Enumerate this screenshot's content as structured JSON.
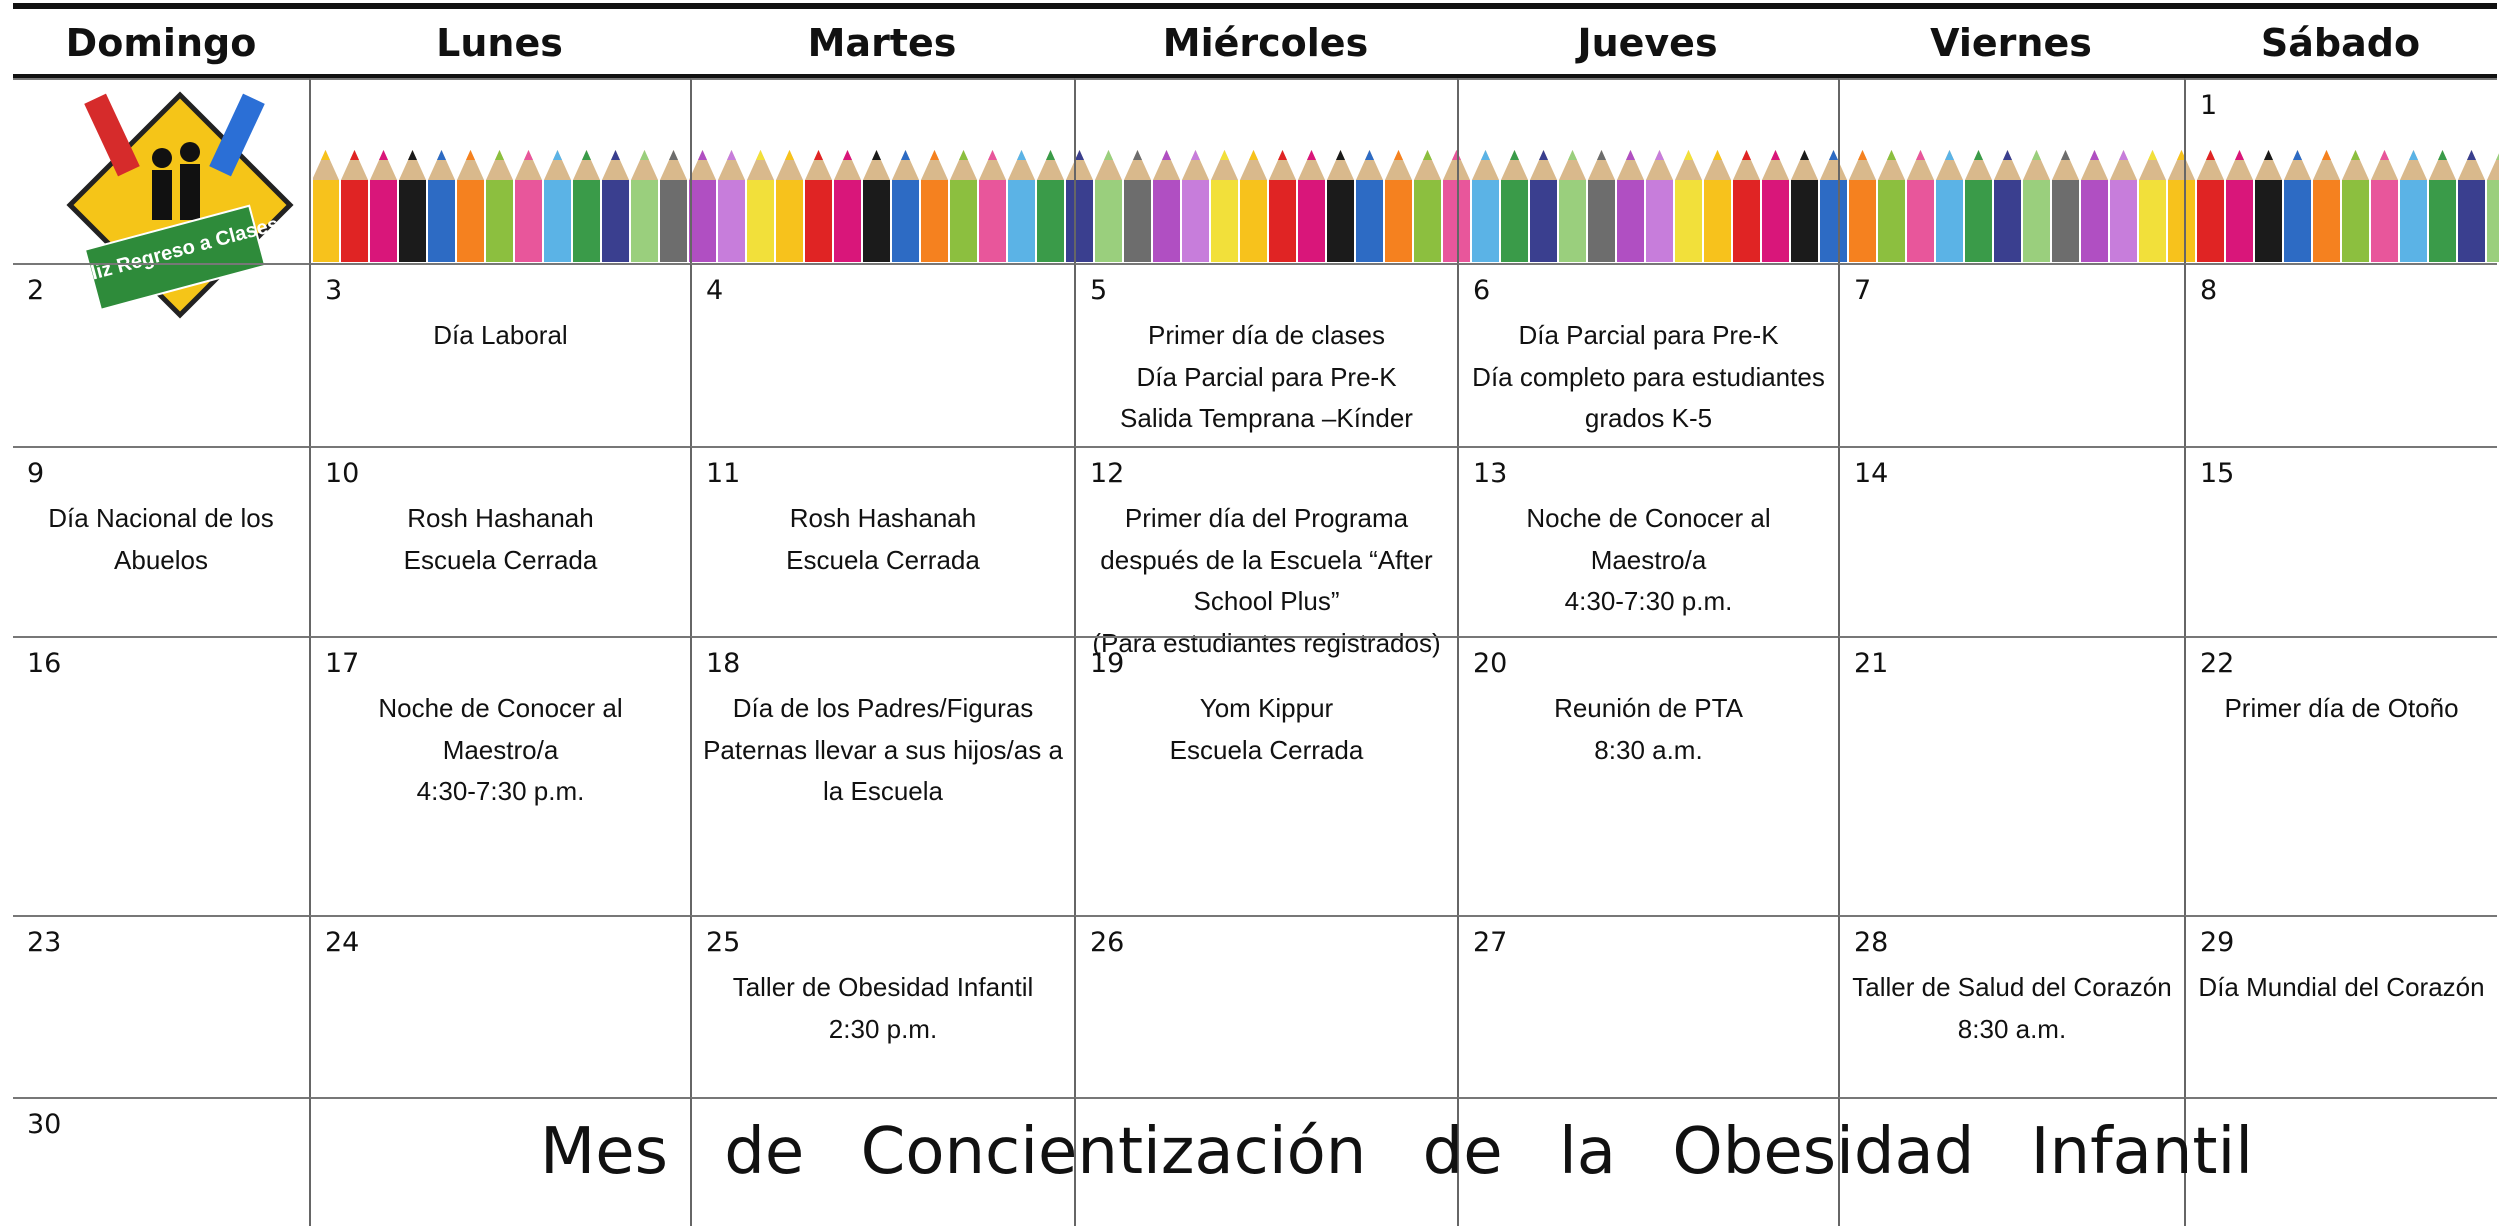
{
  "header": {
    "days": [
      "Domingo",
      "Lunes",
      "Martes",
      "Miércoles",
      "Jueves",
      "Viernes",
      "Sábado"
    ]
  },
  "logo_text": "Feliz Regreso a Clases",
  "weeks": [
    [
      null,
      null,
      null,
      null,
      null,
      null,
      {
        "day": 1
      }
    ],
    [
      {
        "day": 2
      },
      {
        "day": 3,
        "events": [
          "Día Laboral"
        ]
      },
      {
        "day": 4
      },
      {
        "day": 5,
        "events": [
          "Primer día de clases",
          "Día Parcial para Pre-K",
          "Salida Temprana –Kínder"
        ]
      },
      {
        "day": 6,
        "events": [
          "Día Parcial para Pre-K",
          "Día completo para estudiantes grados K-5"
        ]
      },
      {
        "day": 7
      },
      {
        "day": 8
      }
    ],
    [
      {
        "day": 9,
        "events": [
          "Día Nacional de los Abuelos"
        ]
      },
      {
        "day": 10,
        "events": [
          "Rosh Hashanah",
          "Escuela Cerrada"
        ]
      },
      {
        "day": 11,
        "events": [
          "Rosh Hashanah",
          "Escuela Cerrada"
        ]
      },
      {
        "day": 12,
        "events": [
          "Primer día del Programa después de la Escuela “After School Plus”",
          "(Para estudiantes registrados)"
        ]
      },
      {
        "day": 13,
        "events": [
          "Noche de Conocer al Maestro/a",
          "4:30-7:30 p.m."
        ]
      },
      {
        "day": 14
      },
      {
        "day": 15
      }
    ],
    [
      {
        "day": 16
      },
      {
        "day": 17,
        "events": [
          "Noche de Conocer al Maestro/a",
          "4:30-7:30 p.m."
        ]
      },
      {
        "day": 18,
        "events": [
          "Día de los Padres/Figuras Paternas llevar a sus hijos/as a la Escuela"
        ]
      },
      {
        "day": 19,
        "events": [
          "Yom Kippur",
          "Escuela Cerrada"
        ]
      },
      {
        "day": 20,
        "events": [
          "Reunión de PTA",
          "8:30 a.m."
        ]
      },
      {
        "day": 21
      },
      {
        "day": 22,
        "events": [
          "Primer día de Otoño"
        ]
      }
    ],
    [
      {
        "day": 23
      },
      {
        "day": 24
      },
      {
        "day": 25,
        "events": [
          "Taller de Obesidad Infantil",
          "2:30 p.m."
        ]
      },
      {
        "day": 26
      },
      {
        "day": 27
      },
      {
        "day": 28,
        "events": [
          "Taller de Salud del Corazón",
          "8:30 a.m."
        ]
      },
      {
        "day": 29,
        "events": [
          "Día Mundial del Corazón"
        ]
      }
    ],
    [
      {
        "day": 30
      },
      null,
      null,
      null,
      null,
      null,
      null
    ]
  ],
  "banner": "Mes de Concientización de la Obesidad Infantil"
}
